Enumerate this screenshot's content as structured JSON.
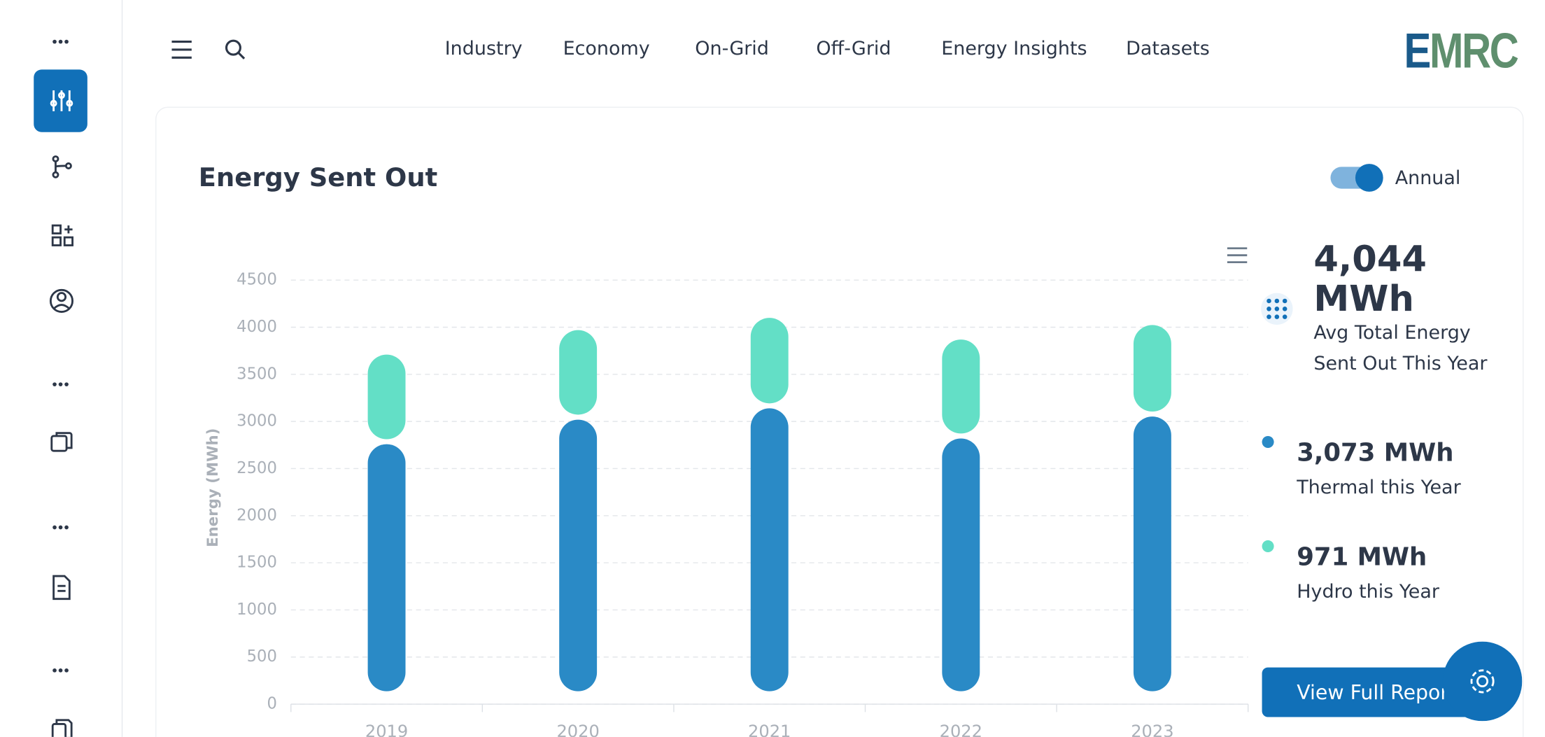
{
  "nav": {
    "links": [
      "Industry",
      "Economy",
      "On-Grid",
      "Off-Grid",
      "Energy Insights",
      "Datasets"
    ],
    "logo": {
      "first": "E",
      "rest": "MRC"
    }
  },
  "card": {
    "toggle_label": "Annual"
  },
  "chart_data": {
    "type": "bar",
    "stacked": true,
    "title": "Energy Sent Out",
    "y_label": "Energy (MWh)",
    "categories": [
      "2019",
      "2020",
      "2021",
      "2022",
      "2023"
    ],
    "series": [
      {
        "color": "#2a8ac6",
        "values": [
          2780,
          3040,
          3160,
          2840,
          3073
        ]
      },
      {
        "color": "#63dfc6",
        "values": [
          950,
          950,
          960,
          1050,
          971
        ]
      }
    ],
    "ylim": [
      0,
      4500
    ],
    "yticks": [
      0,
      500,
      1000,
      1500,
      2000,
      2500,
      3000,
      3500,
      4000,
      4500
    ],
    "grid": true
  },
  "summary": {
    "total": "4,044 MWh",
    "total_caption": "Avg Total Energy Sent Out This Year",
    "items": [
      {
        "value": "3,073 MWh",
        "caption": "Thermal this Year"
      },
      {
        "value": "971 MWh",
        "caption": "Hydro this Year"
      }
    ],
    "button": "View Full Report"
  }
}
